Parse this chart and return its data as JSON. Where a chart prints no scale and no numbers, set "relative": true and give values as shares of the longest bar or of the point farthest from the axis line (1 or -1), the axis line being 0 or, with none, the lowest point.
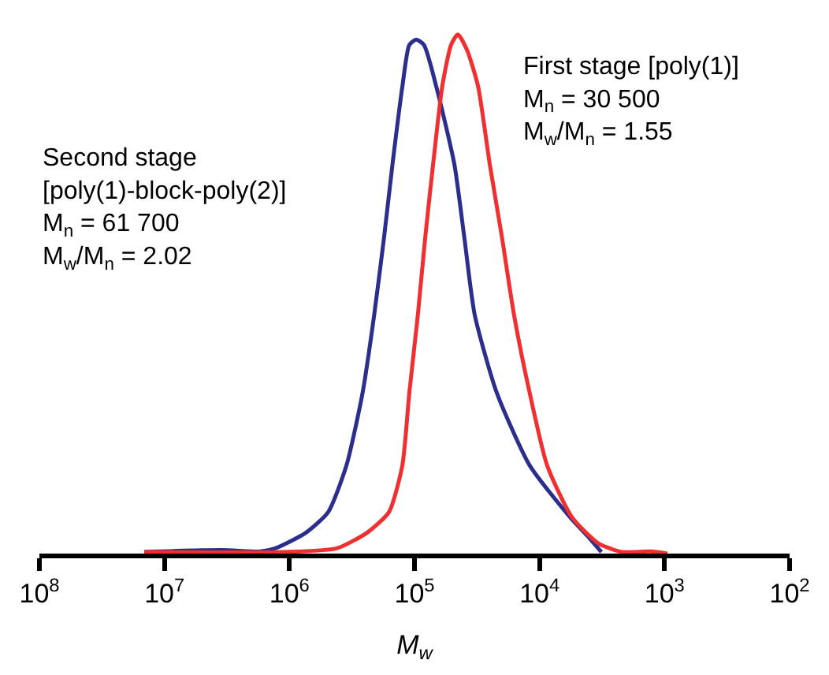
{
  "chart_data": {
    "type": "line",
    "relative": true,
    "xlabel": "M$_{w}$",
    "log": "x",
    "marker": "none",
    "line_style": "solid",
    "xlim": [
      100000000,
      100
    ],
    "xticks": [
      {
        "value": 100000000,
        "label": "10$^{8}$"
      },
      {
        "value": 10000000,
        "label": "10$^{7}$"
      },
      {
        "value": 1000000,
        "label": "10$^{6}$"
      },
      {
        "value": 100000,
        "label": "10$^{5}$"
      },
      {
        "value": 10000,
        "label": "10$^{4}$"
      },
      {
        "value": 1000,
        "label": "10$^{3}$"
      },
      {
        "value": 100,
        "label": "10$^{2}$"
      }
    ],
    "annotations": [
      "Second stage\n[poly(1)-block-poly(2)]\nM$_{n}$ = 61 700\nM$_{w}$/M$_{n}$ = 2.02",
      "First stage [poly(1)]\nM$_{n}$ = 30 500\nM$_{w}$/M$_{n}$ = 1.55"
    ],
    "series": [
      {
        "color": "#2b2e8c",
        "x": [
          14500000,
          3500000,
          1700000,
          1300000,
          740000,
          490000,
          350000,
          260000,
          210000,
          175000,
          150000,
          125000,
          110000,
          97000,
          84000,
          67000,
          48000,
          40000,
          33000,
          22000,
          12000,
          5700,
          4000,
          3200
        ],
        "values": [
          0.003,
          0.007,
          0.004,
          0.01,
          0.04,
          0.08,
          0.17,
          0.31,
          0.46,
          0.61,
          0.75,
          0.9,
          0.98,
          0.99,
          0.98,
          0.9,
          0.75,
          0.61,
          0.46,
          0.31,
          0.17,
          0.07,
          0.03,
          0.003
        ]
      },
      {
        "color": "#f03030",
        "x": [
          14500000,
          1100000,
          420000,
          240000,
          160000,
          125000,
          110000,
          94000,
          82000,
          71000,
          60000,
          51000,
          45000,
          38000,
          31000,
          25000,
          20000,
          16000,
          12000,
          8700,
          5500,
          3400,
          2200,
          1300,
          950
        ],
        "values": [
          0.003,
          0.003,
          0.01,
          0.04,
          0.08,
          0.17,
          0.31,
          0.46,
          0.61,
          0.75,
          0.9,
          0.98,
          1,
          0.97,
          0.9,
          0.75,
          0.61,
          0.46,
          0.31,
          0.17,
          0.07,
          0.02,
          0.003,
          0.004,
          0
        ]
      }
    ]
  }
}
